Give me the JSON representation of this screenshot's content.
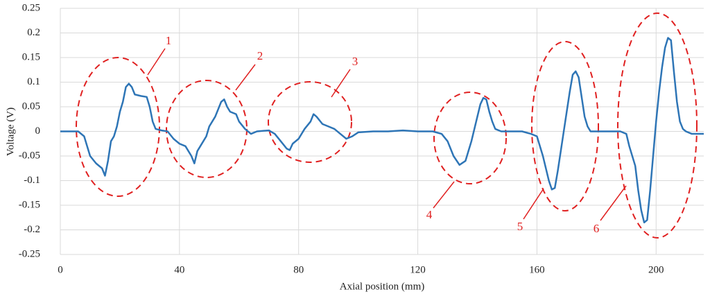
{
  "chart_data": {
    "type": "line",
    "x_label": "Axial position (mm)",
    "y_label": "Voltage (V)",
    "color": "#2e75b6",
    "x": [
      0,
      6,
      8,
      10,
      12,
      14,
      15,
      16,
      17,
      18,
      19,
      20,
      21,
      22,
      23,
      24,
      25,
      27,
      29,
      30,
      31,
      32,
      34,
      36,
      38,
      40,
      42,
      44,
      45,
      46,
      47,
      49,
      50,
      52,
      54,
      55,
      56,
      57,
      59,
      60,
      62,
      64,
      66,
      70,
      72,
      74,
      76,
      77,
      78,
      80,
      82,
      84,
      85,
      86,
      88,
      90,
      92,
      94,
      96,
      98,
      100,
      105,
      110,
      115,
      120,
      125,
      128,
      130,
      132,
      134,
      136,
      137,
      138,
      139,
      140,
      141,
      142,
      143,
      144,
      145,
      146,
      148,
      155,
      158,
      160,
      162,
      164,
      165,
      166,
      167,
      168,
      169,
      170,
      171,
      172,
      173,
      174,
      175,
      176,
      177,
      178,
      182,
      186,
      188,
      190,
      191,
      193,
      194,
      195,
      196,
      197,
      198,
      199,
      200,
      201,
      202,
      203,
      204,
      205,
      206,
      207,
      208,
      209,
      210,
      212,
      216
    ],
    "values": [
      0,
      0,
      -0.01,
      -0.05,
      -0.065,
      -0.075,
      -0.09,
      -0.06,
      -0.02,
      -0.01,
      0.01,
      0.04,
      0.06,
      0.09,
      0.097,
      0.09,
      0.075,
      0.072,
      0.07,
      0.05,
      0.02,
      0.005,
      0.002,
      0,
      -0.015,
      -0.025,
      -0.03,
      -0.05,
      -0.065,
      -0.04,
      -0.03,
      -0.01,
      0.01,
      0.03,
      0.06,
      0.065,
      0.05,
      0.04,
      0.035,
      0.02,
      0.005,
      -0.005,
      0,
      0.002,
      -0.005,
      -0.02,
      -0.035,
      -0.038,
      -0.025,
      -0.015,
      0.005,
      0.02,
      0.035,
      0.03,
      0.015,
      0.01,
      0.005,
      -0.005,
      -0.015,
      -0.01,
      -0.002,
      0,
      0,
      0.002,
      0,
      0,
      -0.005,
      -0.02,
      -0.05,
      -0.068,
      -0.06,
      -0.04,
      -0.02,
      0.005,
      0.03,
      0.055,
      0.068,
      0.065,
      0.04,
      0.02,
      0.005,
      0,
      0,
      -0.005,
      -0.01,
      -0.05,
      -0.1,
      -0.118,
      -0.115,
      -0.08,
      -0.04,
      0,
      0.04,
      0.08,
      0.115,
      0.122,
      0.11,
      0.07,
      0.03,
      0.01,
      0,
      0,
      0,
      0,
      -0.005,
      -0.03,
      -0.07,
      -0.12,
      -0.16,
      -0.185,
      -0.18,
      -0.12,
      -0.05,
      0.02,
      0.08,
      0.13,
      0.17,
      0.19,
      0.185,
      0.12,
      0.06,
      0.02,
      0.005,
      0,
      -0.005,
      -0.005
    ],
    "xlim": [
      0,
      216
    ],
    "xticks": [
      0,
      40,
      80,
      120,
      160,
      200
    ],
    "ylim": [
      -0.25,
      0.25
    ],
    "yticks": [
      -0.25,
      -0.2,
      -0.15,
      -0.1,
      -0.05,
      0,
      0.05,
      0.1,
      0.15,
      0.2,
      0.25
    ],
    "grid": true,
    "annotations": [
      "1",
      "2",
      "3",
      "4",
      "5",
      "6"
    ]
  }
}
